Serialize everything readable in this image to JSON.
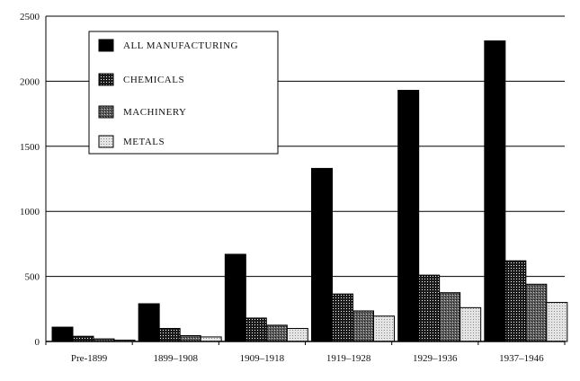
{
  "chart_data": {
    "type": "bar",
    "categories": [
      "Pre-1899",
      "1899–1908",
      "1909–1918",
      "1919–1928",
      "1929–1936",
      "1937–1946"
    ],
    "series": [
      {
        "name": "ALL MANUFACTURING",
        "values": [
          110,
          290,
          670,
          1330,
          1930,
          2310
        ]
      },
      {
        "name": "CHEMICALS",
        "values": [
          40,
          100,
          180,
          365,
          510,
          620
        ]
      },
      {
        "name": "MACHINERY",
        "values": [
          20,
          45,
          125,
          235,
          375,
          440
        ]
      },
      {
        "name": "METALS",
        "values": [
          10,
          35,
          100,
          195,
          260,
          300
        ]
      }
    ],
    "title": "",
    "xlabel": "",
    "ylabel": "",
    "ylim": [
      0,
      2500
    ],
    "yticks": [
      0,
      500,
      1000,
      1500,
      2000,
      2500
    ],
    "grid": true,
    "legend": "top-left",
    "colors": [
      "#000000",
      "#555555",
      "#808080",
      "#d8d8d8"
    ],
    "patterns": [
      "solid",
      "dense-dots",
      "medium-dots",
      "light-dots"
    ]
  }
}
